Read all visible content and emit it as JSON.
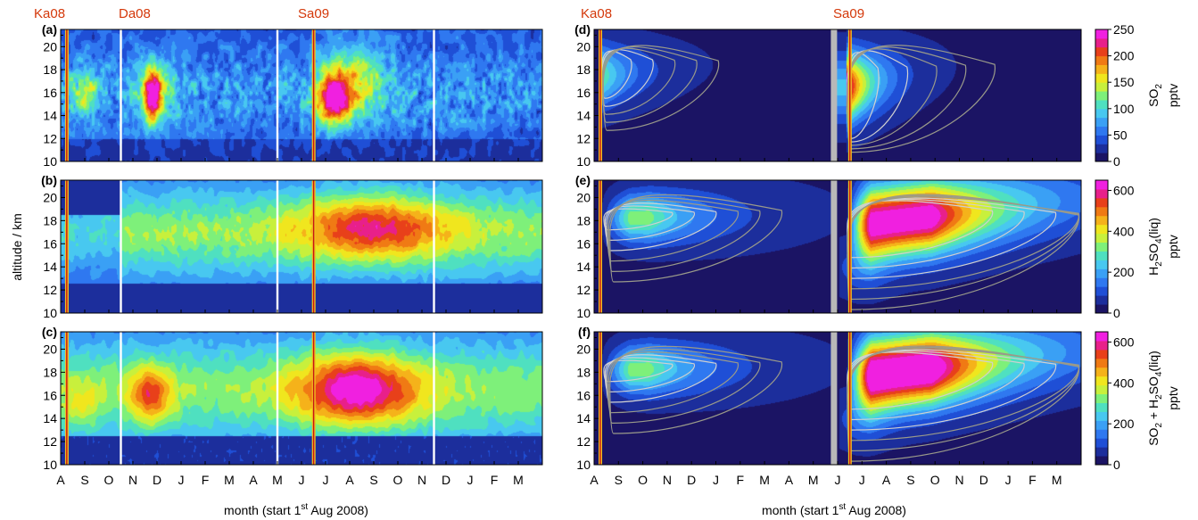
{
  "chart_data": {
    "type": "heatmap",
    "xlabel": "month (start 1st Aug 2008)",
    "ylabel": "altitude / km",
    "ylim": [
      10,
      21.5
    ],
    "yticks": [
      10,
      12,
      14,
      16,
      18,
      20
    ],
    "eruptions": [
      {
        "name": "Ka08",
        "month": 0.25,
        "color": "#d4380a"
      },
      {
        "name": "Da08",
        "month": 2.9,
        "color": "#d4380a"
      },
      {
        "name": "Sa09",
        "month": 10.5,
        "color": "#d4380a"
      }
    ],
    "left_months": [
      "A",
      "S",
      "O",
      "N",
      "D",
      "J",
      "F",
      "M",
      "A",
      "M",
      "J",
      "J",
      "A",
      "S",
      "O",
      "N",
      "D",
      "J",
      "F",
      "M"
    ],
    "right_months": [
      "A",
      "S",
      "O",
      "N",
      "D",
      "J",
      "F",
      "M",
      "A",
      "M",
      "J",
      "J",
      "A",
      "S",
      "O",
      "N",
      "D",
      "J",
      "F",
      "M"
    ],
    "left_white_lines_month": [
      2.5,
      9.0,
      15.5
    ],
    "right_gap_month": 9.85,
    "panels": [
      {
        "id": "(a)",
        "side": "left",
        "row": 0,
        "field": "so2"
      },
      {
        "id": "(b)",
        "side": "left",
        "row": 1,
        "field": "h2so4"
      },
      {
        "id": "(c)",
        "side": "left",
        "row": 2,
        "field": "sum"
      },
      {
        "id": "(d)",
        "side": "right",
        "row": 0,
        "field": "so2"
      },
      {
        "id": "(e)",
        "side": "right",
        "row": 1,
        "field": "h2so4"
      },
      {
        "id": "(f)",
        "side": "right",
        "row": 2,
        "field": "sum"
      }
    ],
    "colorbars": [
      {
        "row": 0,
        "ticks": [
          "0",
          "50",
          "100",
          "150",
          "200",
          "250"
        ],
        "max": 250,
        "label_parts": [
          "SO",
          "2"
        ],
        "unit": "pptv"
      },
      {
        "row": 1,
        "ticks": [
          "0",
          "200",
          "400",
          "600"
        ],
        "max": 650,
        "label_parts": [
          "H",
          "2",
          "SO",
          "4",
          "(liq)"
        ],
        "unit": "pptv"
      },
      {
        "row": 2,
        "ticks": [
          "0",
          "200",
          "400",
          "600"
        ],
        "max": 650,
        "label_parts": [
          "SO",
          "2",
          " + H",
          "2",
          "SO",
          "4",
          "(liq)"
        ],
        "unit": "pptv"
      }
    ],
    "colormap": [
      "#1b1464",
      "#1c2e9c",
      "#1f4fd6",
      "#2f78f0",
      "#3aa0f5",
      "#48c8f0",
      "#4fe0c0",
      "#7ef07a",
      "#c8f03c",
      "#f0e61e",
      "#f5b21a",
      "#f07a14",
      "#e8401a",
      "#e8208a",
      "#f020e0"
    ]
  },
  "labels": {
    "xlabel_prefix": "month (start 1",
    "xlabel_sup": "st",
    "xlabel_suffix": " Aug 2008)",
    "ylabel": "altitude / km"
  }
}
